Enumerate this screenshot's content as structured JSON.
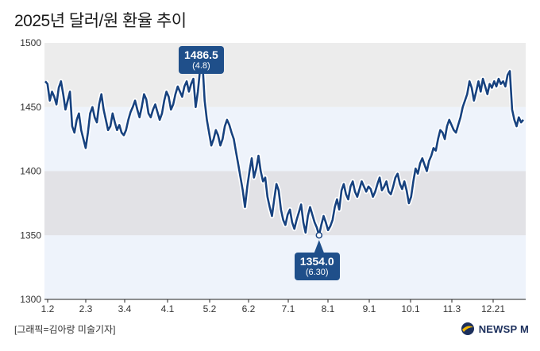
{
  "title": "2025년 달러/원 환율 추이",
  "credit": "[그래픽=김아랑 미술기자]",
  "logo": {
    "text": "NEWSP M",
    "icon": "newspim-globe-icon"
  },
  "colors": {
    "line": "#17427f",
    "band_gray": "#ececec",
    "band_gray2": "#e2e2e6",
    "band_blue": "#eef3fb",
    "label_box": "#1f4f8a"
  },
  "chart_data": {
    "type": "line",
    "title": "2025년 달러/원 환율 추이",
    "xlabel": "",
    "ylabel": "",
    "ylim": [
      1300,
      1500
    ],
    "yticks": [
      "1300",
      "1350",
      "1400",
      "1450",
      "1500"
    ],
    "xticks": [
      "1.2",
      "2.3",
      "3.4",
      "4.1",
      "5.2",
      "6.2",
      "7.1",
      "8.1",
      "9.1",
      "10.1",
      "11.3",
      "12.21"
    ],
    "grid": false,
    "series": [
      {
        "name": "",
        "values": [
          1470,
          1468,
          1455,
          1462,
          1458,
          1452,
          1465,
          1470,
          1460,
          1448,
          1455,
          1462,
          1435,
          1430,
          1440,
          1445,
          1432,
          1425,
          1418,
          1430,
          1445,
          1450,
          1442,
          1438,
          1452,
          1460,
          1448,
          1440,
          1432,
          1435,
          1445,
          1438,
          1432,
          1436,
          1430,
          1428,
          1432,
          1440,
          1446,
          1450,
          1455,
          1448,
          1442,
          1450,
          1460,
          1456,
          1445,
          1442,
          1448,
          1452,
          1446,
          1440,
          1445,
          1455,
          1462,
          1458,
          1448,
          1452,
          1460,
          1466,
          1462,
          1458,
          1466,
          1470,
          1462,
          1468,
          1472,
          1450,
          1462,
          1480,
          1486.5,
          1455,
          1440,
          1430,
          1420,
          1425,
          1432,
          1428,
          1420,
          1425,
          1435,
          1440,
          1436,
          1430,
          1425,
          1415,
          1405,
          1395,
          1385,
          1372,
          1388,
          1400,
          1410,
          1395,
          1402,
          1412,
          1400,
          1392,
          1395,
          1380,
          1372,
          1365,
          1378,
          1390,
          1385,
          1370,
          1362,
          1358,
          1366,
          1370,
          1360,
          1355,
          1362,
          1368,
          1374,
          1360,
          1352,
          1365,
          1372,
          1366,
          1360,
          1356,
          1350,
          1358,
          1365,
          1360,
          1354,
          1357,
          1362,
          1372,
          1378,
          1370,
          1385,
          1390,
          1382,
          1378,
          1388,
          1392,
          1384,
          1380,
          1386,
          1392,
          1388,
          1384,
          1388,
          1386,
          1380,
          1384,
          1390,
          1395,
          1385,
          1388,
          1392,
          1384,
          1382,
          1388,
          1395,
          1398,
          1390,
          1386,
          1392,
          1385,
          1375,
          1380,
          1392,
          1402,
          1398,
          1406,
          1410,
          1405,
          1400,
          1408,
          1412,
          1418,
          1416,
          1425,
          1432,
          1430,
          1425,
          1435,
          1440,
          1436,
          1432,
          1430,
          1436,
          1442,
          1450,
          1455,
          1460,
          1470,
          1465,
          1455,
          1462,
          1470,
          1462,
          1472,
          1466,
          1460,
          1468,
          1465,
          1470,
          1466,
          1472,
          1468,
          1470,
          1466,
          1475,
          1478,
          1448,
          1440,
          1435,
          1442,
          1438,
          1440
        ]
      }
    ],
    "annotations": [
      {
        "value": "1486.5",
        "date": "(4.8)"
      },
      {
        "value": "1354.0",
        "date": "(6.30)"
      }
    ]
  }
}
